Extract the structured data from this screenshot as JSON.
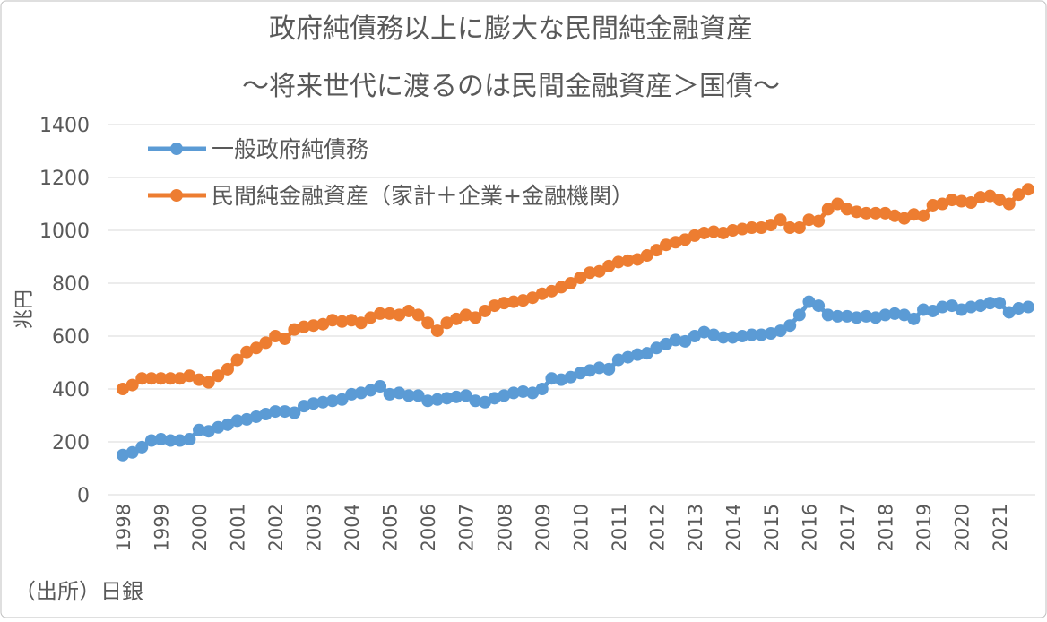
{
  "chart_data": {
    "type": "line",
    "title": "政府純債務以上に膨大な民間純金融資産",
    "subtitle": "～将来世代に渡るのは民間金融資産＞国債～",
    "y_label": "兆円",
    "note": "（出所）日銀",
    "categories": [
      "1998",
      null,
      null,
      null,
      "1999",
      null,
      null,
      null,
      "2000",
      null,
      null,
      null,
      "2001",
      null,
      null,
      null,
      "2002",
      null,
      null,
      null,
      "2003",
      null,
      null,
      null,
      "2004",
      null,
      null,
      null,
      "2005",
      null,
      null,
      null,
      "2006",
      null,
      null,
      null,
      "2007",
      null,
      null,
      null,
      "2008",
      null,
      null,
      null,
      "2009",
      null,
      null,
      null,
      "2010",
      null,
      null,
      null,
      "2011",
      null,
      null,
      null,
      "2012",
      null,
      null,
      null,
      "2013",
      null,
      null,
      null,
      "2014",
      null,
      null,
      null,
      "2015",
      null,
      null,
      null,
      "2016",
      null,
      null,
      null,
      "2017",
      null,
      null,
      null,
      "2018",
      null,
      null,
      null,
      "2019",
      null,
      null,
      null,
      "2020",
      null,
      null,
      null,
      "2021",
      null,
      null,
      null
    ],
    "series": [
      {
        "name": "一般政府純債務",
        "color": "#5b9bd5",
        "values": [
          150,
          160,
          180,
          205,
          210,
          205,
          205,
          210,
          245,
          240,
          255,
          265,
          280,
          285,
          295,
          305,
          315,
          315,
          310,
          335,
          345,
          350,
          355,
          360,
          380,
          385,
          395,
          410,
          380,
          385,
          375,
          375,
          355,
          360,
          365,
          370,
          375,
          355,
          350,
          365,
          375,
          385,
          390,
          385,
          400,
          440,
          435,
          445,
          460,
          470,
          480,
          475,
          510,
          520,
          530,
          535,
          555,
          570,
          585,
          580,
          600,
          615,
          605,
          595,
          595,
          600,
          605,
          605,
          610,
          620,
          640,
          680,
          730,
          715,
          680,
          675,
          675,
          670,
          675,
          670,
          680,
          685,
          680,
          665,
          700,
          695,
          710,
          715,
          700,
          710,
          715,
          725,
          725,
          690,
          705,
          710
        ]
      },
      {
        "name": "民間純金融資産（家計＋企業+金融機関）",
        "color": "#ed7d31",
        "values": [
          400,
          415,
          440,
          440,
          440,
          440,
          440,
          450,
          435,
          425,
          450,
          475,
          510,
          540,
          555,
          575,
          600,
          590,
          625,
          635,
          640,
          645,
          660,
          655,
          660,
          650,
          670,
          685,
          685,
          680,
          695,
          680,
          650,
          620,
          650,
          665,
          680,
          670,
          695,
          715,
          725,
          730,
          735,
          745,
          760,
          770,
          785,
          800,
          820,
          840,
          845,
          865,
          880,
          885,
          890,
          905,
          925,
          945,
          955,
          965,
          980,
          990,
          995,
          990,
          1000,
          1005,
          1010,
          1010,
          1020,
          1040,
          1010,
          1010,
          1040,
          1035,
          1080,
          1100,
          1080,
          1070,
          1065,
          1065,
          1065,
          1055,
          1045,
          1060,
          1055,
          1095,
          1100,
          1115,
          1110,
          1105,
          1125,
          1130,
          1115,
          1100,
          1135,
          1155
        ]
      }
    ],
    "ylim": [
      0,
      1400
    ],
    "yticks": [
      0,
      200,
      400,
      600,
      800,
      1000,
      1200,
      1400
    ],
    "grid": true,
    "legend": "top-left"
  }
}
